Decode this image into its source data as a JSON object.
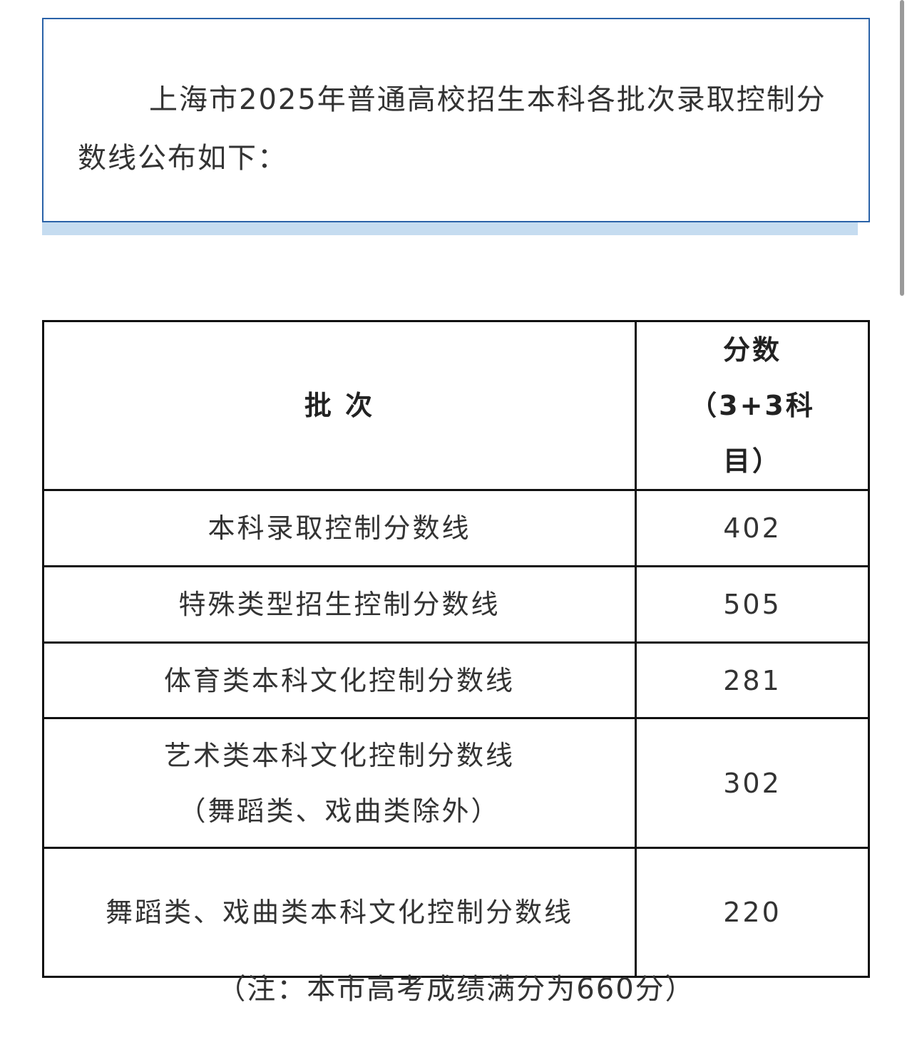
{
  "intro": {
    "text": "上海市2025年普通高校招生本科各批次录取控制分数线公布如下："
  },
  "table": {
    "headers": [
      "批 次",
      "分数（3+3科目）"
    ],
    "rows": [
      {
        "batch": "本科录取控制分数线",
        "score": "402"
      },
      {
        "batch": "特殊类型招生控制分数线",
        "score": "505"
      },
      {
        "batch": "体育类本科文化控制分数线",
        "score": "281"
      },
      {
        "batch": "艺术类本科文化控制分数线\n（舞蹈类、戏曲类除外）",
        "score": "302"
      },
      {
        "batch": "舞蹈类、戏曲类本科文化控制分数线",
        "score": "220"
      }
    ]
  },
  "note": "（注：本市高考成绩满分为660分）",
  "colors": {
    "box_border": "#2a62a8",
    "box_shadow": "#c5dcf0"
  }
}
